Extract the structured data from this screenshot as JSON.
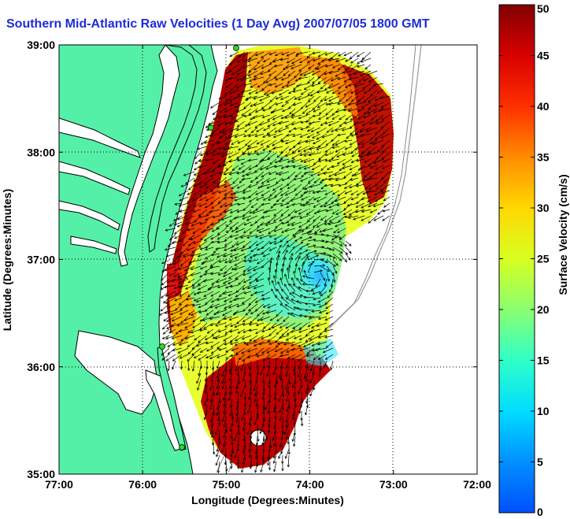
{
  "title": "Southern Mid-Atlantic Raw Velocities (1 Day Avg) 2007/07/05 1800 GMT",
  "x_axis": {
    "label": "Longitude (Degrees:Minutes)",
    "ticks": [
      {
        "value": -77,
        "label": "77:00"
      },
      {
        "value": -76,
        "label": "76:00"
      },
      {
        "value": -75,
        "label": "75:00"
      },
      {
        "value": -74,
        "label": "74:00"
      },
      {
        "value": -73,
        "label": "73:00"
      },
      {
        "value": -72,
        "label": "72:00"
      }
    ]
  },
  "y_axis": {
    "label": "Latitude (Degrees:Minutes)",
    "ticks": [
      {
        "value": 35,
        "label": "35:00"
      },
      {
        "value": 36,
        "label": "36:00"
      },
      {
        "value": 37,
        "label": "37:00"
      },
      {
        "value": 38,
        "label": "38:00"
      },
      {
        "value": 39,
        "label": "39:00"
      }
    ]
  },
  "colorbar": {
    "label": "Surface Velocity (cm/s)",
    "min": 0,
    "max": 50,
    "ticks": [
      {
        "value": 0,
        "label": "0"
      },
      {
        "value": 5,
        "label": "5"
      },
      {
        "value": 10,
        "label": "10"
      },
      {
        "value": 15,
        "label": "15"
      },
      {
        "value": 20,
        "label": "20"
      },
      {
        "value": 25,
        "label": "25"
      },
      {
        "value": 30,
        "label": "30"
      },
      {
        "value": 35,
        "label": "35"
      },
      {
        "value": 40,
        "label": "40"
      },
      {
        "value": 45,
        "label": "45"
      },
      {
        "value": 50,
        "label": "50"
      }
    ]
  },
  "map": {
    "lon_range": [
      -77,
      -72
    ],
    "lat_range": [
      35,
      39
    ],
    "grid": true,
    "colors": {
      "land": "#55f0a8",
      "water": "#ffffff",
      "coast": "#000000",
      "arrow": "#000000",
      "station": "#22dd22"
    }
  }
}
